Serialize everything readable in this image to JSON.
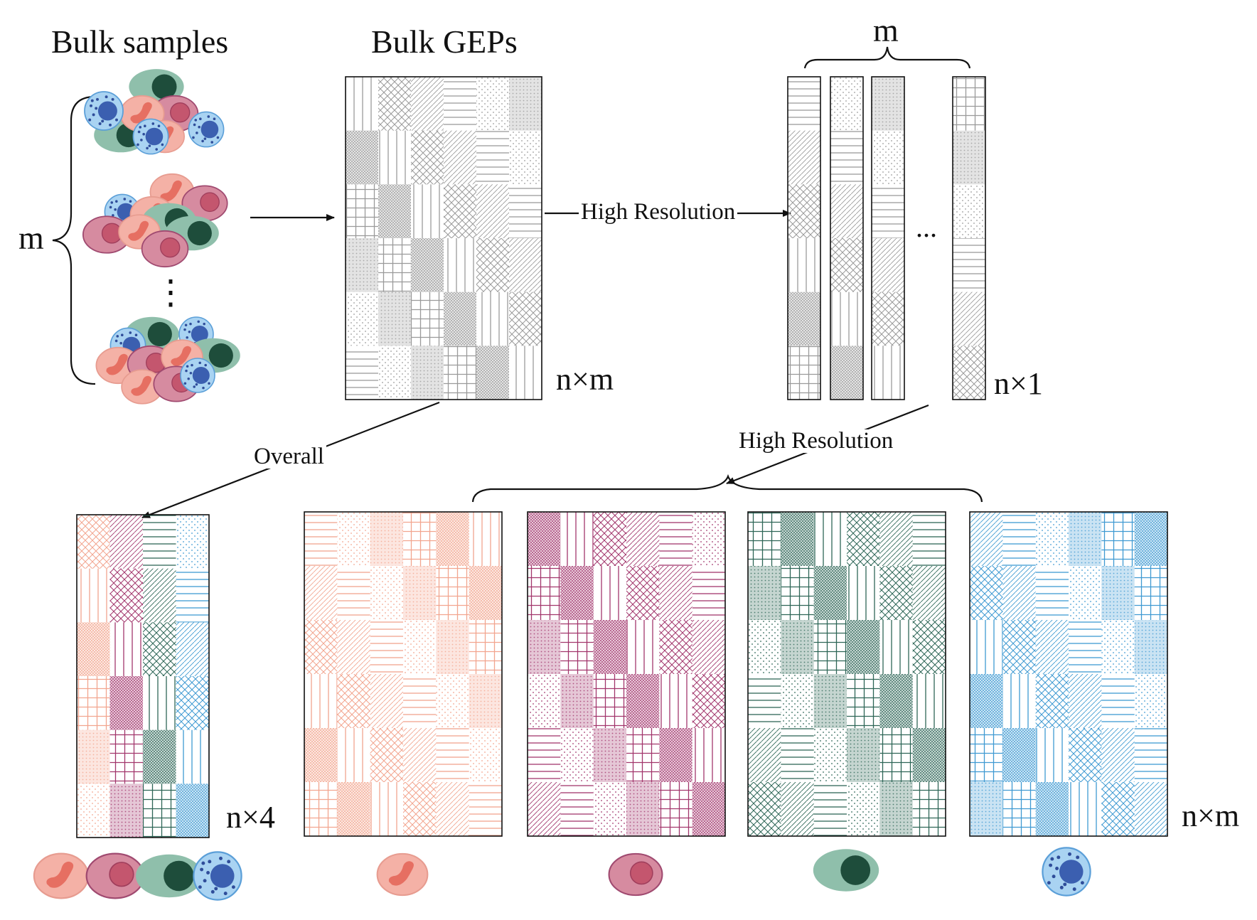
{
  "labels": {
    "bulk_samples": "Bulk samples",
    "bulk_geps": "Bulk GEPs",
    "m_top": "m",
    "m_left": "m",
    "vdots": "⋮",
    "hdots": "...",
    "n_x_m_top": "n×m",
    "n_x_1": "n×1",
    "n_x_4": "n×4",
    "n_x_m_bottom": "n×m"
  },
  "arrows": {
    "high_resolution_top": "High Resolution",
    "high_resolution_bottom": "High Resolution",
    "overall": "Overall"
  },
  "colors": {
    "gray": "#9a9a9a",
    "salmon": "#f2a58f",
    "magenta": "#a2366c",
    "green": "#2e6657",
    "blue": "#3f9ad2"
  },
  "cell_types": [
    {
      "name": "salmon-cell",
      "body": "#f4b1a6",
      "nucleus": "#e66f62"
    },
    {
      "name": "magenta-cell",
      "body": "#d68ba0",
      "nucleus": "#c4566e"
    },
    {
      "name": "green-cell",
      "body": "#8fbfab",
      "nucleus": "#1e4d3b"
    },
    {
      "name": "blue-cell",
      "body": "#a9d3f2",
      "nucleus": "#3b5fb0"
    }
  ]
}
